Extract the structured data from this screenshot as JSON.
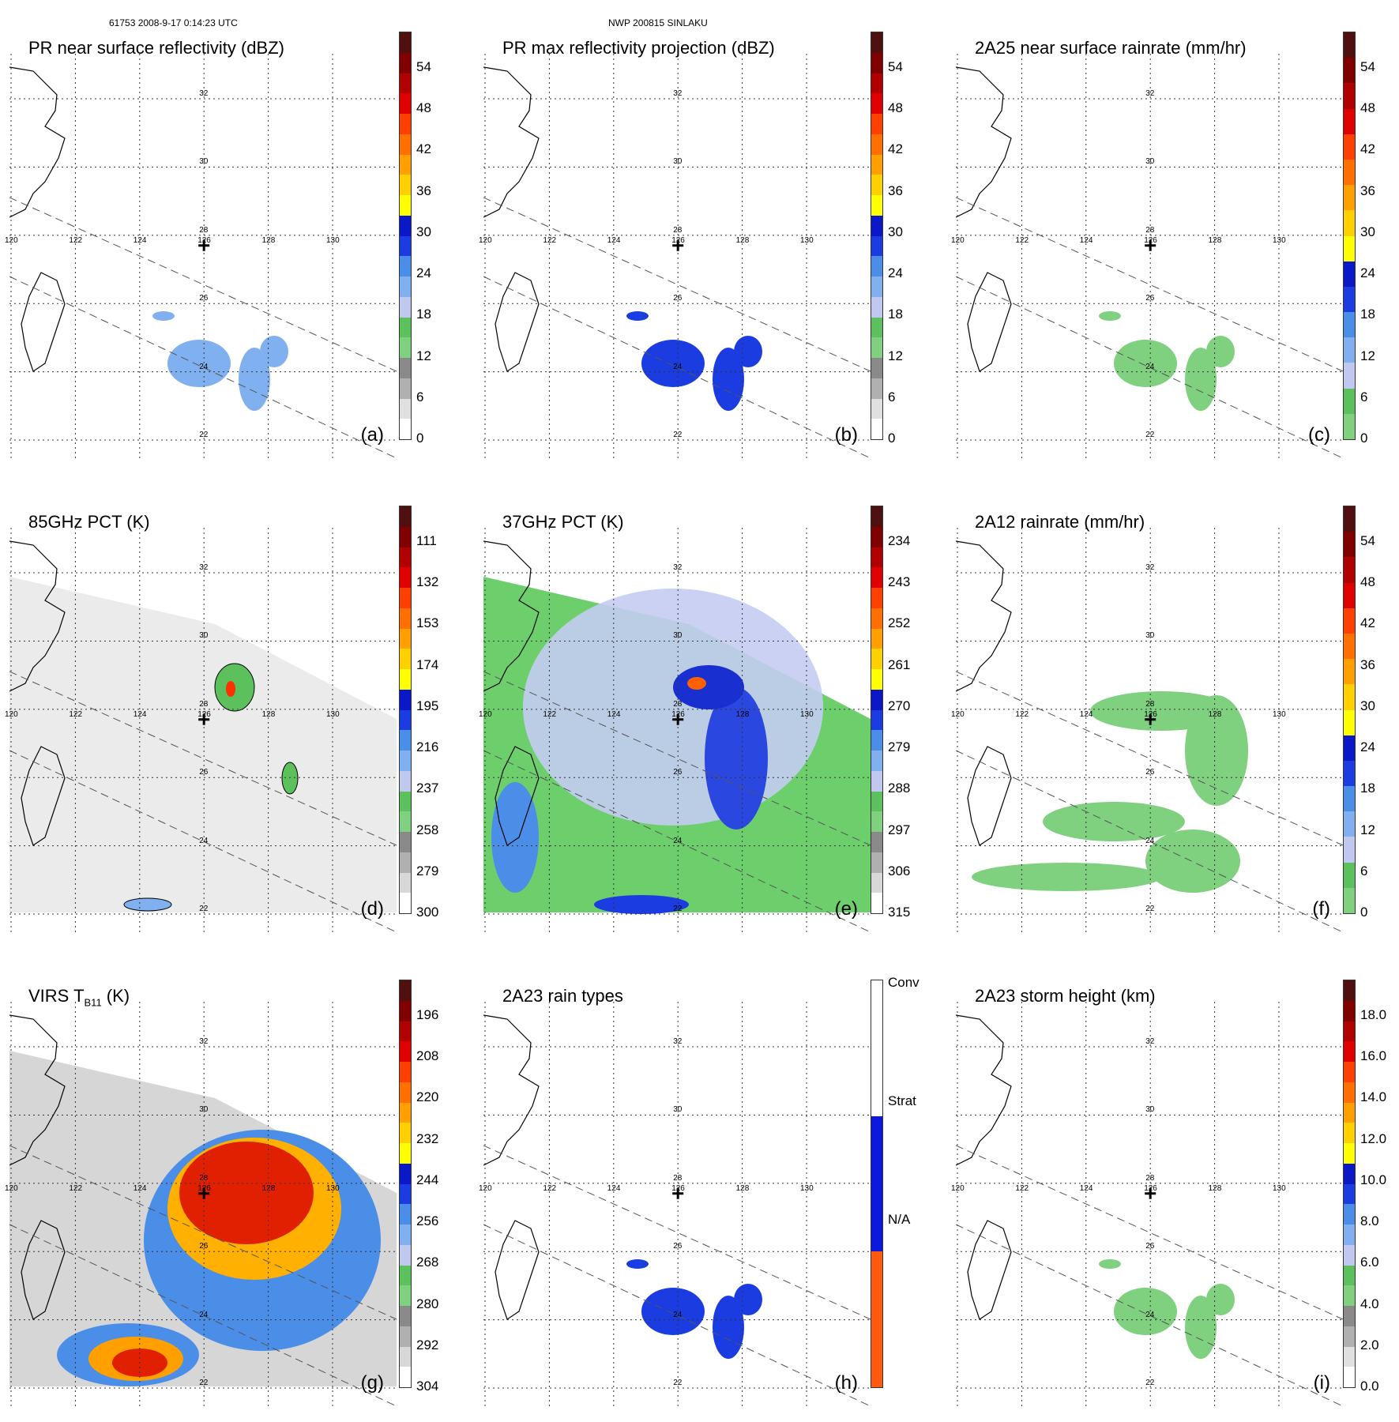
{
  "header": {
    "orbit_time": "61753 2008-9-17 0:14:23 UTC",
    "storm": "NWP 200815 SINLAKU"
  },
  "map_grid": {
    "lat_labels": [
      "32",
      "30",
      "28",
      "26",
      "24",
      "22"
    ],
    "lon_labels": [
      "120",
      "122",
      "124",
      "126",
      "128",
      "130"
    ]
  },
  "panels": [
    {
      "title": "PR near surface reflectivity (dBZ)",
      "label": "(a)",
      "ticks": [
        "54",
        "48",
        "42",
        "36",
        "30",
        "24",
        "18",
        "12",
        "6",
        "0"
      ]
    },
    {
      "title": "PR max reflectivity projection (dBZ)",
      "label": "(b)",
      "ticks": [
        "54",
        "48",
        "42",
        "36",
        "30",
        "24",
        "18",
        "12",
        "6",
        "0"
      ]
    },
    {
      "title": "2A25 near surface rainrate (mm/hr)",
      "label": "(c)",
      "ticks": [
        "54",
        "48",
        "42",
        "36",
        "30",
        "24",
        "18",
        "12",
        "6",
        "0"
      ]
    },
    {
      "title": "85GHz PCT (K)",
      "label": "(d)",
      "ticks": [
        "111",
        "132",
        "153",
        "174",
        "195",
        "216",
        "237",
        "258",
        "279",
        "300"
      ]
    },
    {
      "title": "37GHz PCT (K)",
      "label": "(e)",
      "ticks": [
        "234",
        "243",
        "252",
        "261",
        "270",
        "279",
        "288",
        "297",
        "306",
        "315"
      ]
    },
    {
      "title": "2A12 rainrate (mm/hr)",
      "label": "(f)",
      "ticks": [
        "54",
        "48",
        "42",
        "36",
        "30",
        "24",
        "18",
        "12",
        "6",
        "0"
      ]
    },
    {
      "title": "VIRS T",
      "title_sub": "B11",
      "title_tail": " (K)",
      "label": "(g)",
      "ticks": [
        "196",
        "208",
        "220",
        "232",
        "244",
        "256",
        "268",
        "280",
        "292",
        "304"
      ]
    },
    {
      "title": "2A23 rain types",
      "label": "(h)",
      "ticks": [
        "Conv",
        "Strat",
        "N/A"
      ]
    },
    {
      "title": "2A23 storm height (km)",
      "label": "(i)",
      "ticks": [
        "18.0",
        "16.0",
        "14.0",
        "12.0",
        "10.0",
        "8.0",
        "6.0",
        "4.0",
        "2.0",
        "0.0"
      ]
    }
  ],
  "colors": {
    "dbz_scale": [
      "#ffffff",
      "#e0e0e0",
      "#b0b0b0",
      "#8a8a8a",
      "#7fd07f",
      "#5cc05c",
      "#c0c8f0",
      "#80b0f0",
      "#4a8ee8",
      "#1a3ce0",
      "#0a18c8",
      "#ffff00",
      "#ffd000",
      "#ffa000",
      "#ff7000",
      "#ff4000",
      "#e00000",
      "#b00000",
      "#800000",
      "#501010"
    ],
    "rain_scale": [
      "#7fd07f",
      "#5cc05c",
      "#c0c8f0",
      "#80b0f0",
      "#4a8ee8",
      "#1a3ce0",
      "#0a18c8",
      "#ffff00",
      "#ffd000",
      "#ffa000",
      "#ff7000",
      "#ff4000",
      "#e00000",
      "#b00000",
      "#800000",
      "#501010"
    ],
    "pct_scale": [
      "#501010",
      "#800000",
      "#b00000",
      "#e00000",
      "#ff4000",
      "#ff7000",
      "#ffa000",
      "#ffd000",
      "#ffff00",
      "#0a18c8",
      "#1a3ce0",
      "#4a8ee8",
      "#80b0f0",
      "#c0c8f0",
      "#5cc05c",
      "#7fd07f",
      "#8a8a8a",
      "#b0b0b0",
      "#d8d8d8",
      "#ffffff"
    ],
    "raintype_scale": [
      "#ff5a10",
      "#0a18e0",
      "#ffffff"
    ]
  }
}
